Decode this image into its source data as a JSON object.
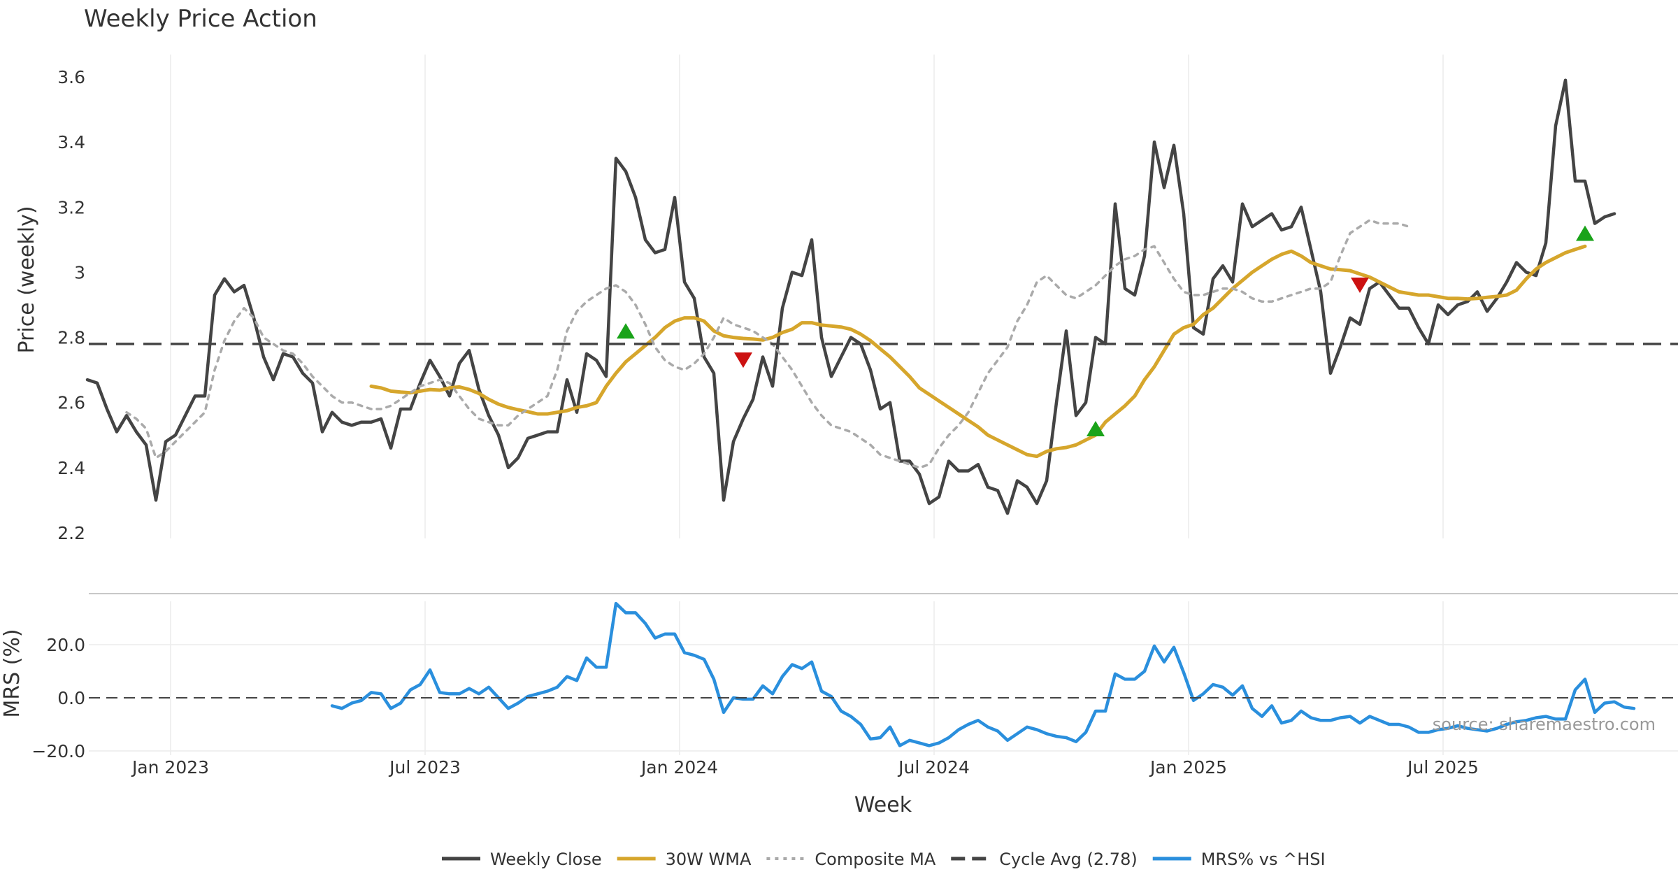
{
  "chart_data": [
    {
      "type": "line",
      "panel": "price",
      "title": "Weekly Price Action",
      "xlabel": "",
      "ylabel": "Price (weekly)",
      "ylim": [
        2.2,
        3.65
      ],
      "yticks": [
        2.2,
        2.4,
        2.6,
        2.8,
        3.0,
        3.2,
        3.4,
        3.6
      ],
      "ytick_labels": [
        "2.2",
        "2.4",
        "2.6",
        "2.8",
        "3",
        "3.2",
        "3.4",
        "3.6"
      ],
      "x_start_week_index": 0,
      "series": [
        {
          "name": "Weekly Close",
          "color": "#444444",
          "style": "solid",
          "start": 0,
          "values": [
            2.67,
            2.66,
            2.58,
            2.51,
            2.56,
            2.51,
            2.47,
            2.3,
            2.48,
            2.5,
            2.56,
            2.62,
            2.62,
            2.93,
            2.98,
            2.94,
            2.96,
            2.86,
            2.74,
            2.67,
            2.75,
            2.74,
            2.69,
            2.66,
            2.51,
            2.57,
            2.54,
            2.53,
            2.54,
            2.54,
            2.55,
            2.46,
            2.58,
            2.58,
            2.66,
            2.73,
            2.68,
            2.62,
            2.72,
            2.76,
            2.64,
            2.56,
            2.5,
            2.4,
            2.43,
            2.49,
            2.5,
            2.51,
            2.51,
            2.67,
            2.57,
            2.75,
            2.73,
            2.68,
            3.35,
            3.31,
            3.23,
            3.1,
            3.06,
            3.07,
            3.23,
            2.97,
            2.92,
            2.74,
            2.69,
            2.3,
            2.48,
            2.55,
            2.61,
            2.74,
            2.65,
            2.89,
            3.0,
            2.99,
            3.1,
            2.8,
            2.68,
            2.74,
            2.8,
            2.78,
            2.7,
            2.58,
            2.6,
            2.42,
            2.42,
            2.38,
            2.29,
            2.31,
            2.42,
            2.39,
            2.39,
            2.41,
            2.34,
            2.33,
            2.26,
            2.36,
            2.34,
            2.29,
            2.36,
            2.6,
            2.82,
            2.56,
            2.6,
            2.8,
            2.78,
            3.21,
            2.95,
            2.93,
            3.05,
            3.4,
            3.26,
            3.39,
            3.18,
            2.83,
            2.81,
            2.98,
            3.02,
            2.97,
            3.21,
            3.14,
            3.16,
            3.18,
            3.13,
            3.14,
            3.2,
            3.07,
            2.94,
            2.69,
            2.77,
            2.86,
            2.84,
            2.95,
            2.97,
            2.93,
            2.89,
            2.89,
            2.83,
            2.78,
            2.9,
            2.87,
            2.9,
            2.91,
            2.94,
            2.88,
            2.92,
            2.97,
            3.03,
            3.0,
            2.99,
            3.09,
            3.45,
            3.59,
            3.28,
            3.28,
            3.15,
            3.17,
            3.18
          ]
        },
        {
          "name": "30W WMA",
          "color": "#d6a62c",
          "style": "solid",
          "start": 29,
          "values": [
            2.65,
            2.645,
            2.635,
            2.632,
            2.63,
            2.635,
            2.64,
            2.638,
            2.645,
            2.648,
            2.64,
            2.628,
            2.61,
            2.595,
            2.585,
            2.578,
            2.572,
            2.565,
            2.565,
            2.57,
            2.575,
            2.585,
            2.59,
            2.6,
            2.65,
            2.69,
            2.725,
            2.75,
            2.775,
            2.8,
            2.83,
            2.85,
            2.86,
            2.86,
            2.85,
            2.82,
            2.805,
            2.8,
            2.797,
            2.795,
            2.792,
            2.8,
            2.815,
            2.825,
            2.845,
            2.845,
            2.838,
            2.835,
            2.832,
            2.825,
            2.81,
            2.79,
            2.765,
            2.74,
            2.71,
            2.68,
            2.645,
            2.625,
            2.605,
            2.585,
            2.565,
            2.545,
            2.525,
            2.5,
            2.485,
            2.47,
            2.455,
            2.44,
            2.435,
            2.45,
            2.458,
            2.462,
            2.47,
            2.485,
            2.5,
            2.54,
            2.565,
            2.59,
            2.62,
            2.67,
            2.71,
            2.76,
            2.81,
            2.83,
            2.84,
            2.87,
            2.89,
            2.92,
            2.95,
            2.975,
            3.0,
            3.02,
            3.04,
            3.055,
            3.065,
            3.05,
            3.03,
            3.02,
            3.01,
            3.008,
            3.005,
            2.995,
            2.985,
            2.97,
            2.955,
            2.94,
            2.935,
            2.93,
            2.93,
            2.925,
            2.92,
            2.92,
            2.918,
            2.92,
            2.923,
            2.926,
            2.93,
            2.945,
            2.98,
            3.01,
            3.03,
            3.045,
            3.06,
            3.07,
            3.08
          ]
        },
        {
          "name": "Composite MA",
          "color": "#aaaaaa",
          "style": "dotted",
          "start": 4,
          "values": [
            2.57,
            2.55,
            2.52,
            2.43,
            2.45,
            2.48,
            2.51,
            2.54,
            2.57,
            2.7,
            2.79,
            2.85,
            2.89,
            2.86,
            2.8,
            2.78,
            2.76,
            2.75,
            2.72,
            2.68,
            2.65,
            2.62,
            2.6,
            2.6,
            2.59,
            2.58,
            2.58,
            2.59,
            2.61,
            2.63,
            2.65,
            2.66,
            2.67,
            2.66,
            2.62,
            2.58,
            2.55,
            2.54,
            2.53,
            2.53,
            2.56,
            2.58,
            2.6,
            2.62,
            2.7,
            2.82,
            2.88,
            2.91,
            2.93,
            2.95,
            2.96,
            2.94,
            2.9,
            2.84,
            2.77,
            2.73,
            2.71,
            2.7,
            2.72,
            2.75,
            2.8,
            2.86,
            2.84,
            2.83,
            2.82,
            2.8,
            2.78,
            2.74,
            2.7,
            2.65,
            2.6,
            2.56,
            2.53,
            2.52,
            2.51,
            2.49,
            2.47,
            2.44,
            2.43,
            2.42,
            2.41,
            2.4,
            2.41,
            2.46,
            2.5,
            2.53,
            2.57,
            2.63,
            2.69,
            2.73,
            2.77,
            2.85,
            2.9,
            2.97,
            2.99,
            2.96,
            2.93,
            2.92,
            2.94,
            2.96,
            2.99,
            3.02,
            3.04,
            3.05,
            3.07,
            3.08,
            3.03,
            2.98,
            2.94,
            2.93,
            2.93,
            2.94,
            2.95,
            2.95,
            2.94,
            2.92,
            2.91,
            2.91,
            2.92,
            2.93,
            2.94,
            2.95,
            2.95,
            2.97,
            3.05,
            3.12,
            3.14,
            3.16,
            3.15,
            3.15,
            3.15,
            3.14
          ]
        },
        {
          "name": "Cycle Avg (2.78)",
          "color": "#444444",
          "style": "dashed",
          "value": 2.78
        }
      ],
      "markers": [
        {
          "type": "buy",
          "week": 55,
          "value": 2.82,
          "color": "#1aa31a"
        },
        {
          "type": "sell",
          "week": 67,
          "value": 2.73,
          "color": "#cc1111"
        },
        {
          "type": "buy",
          "week": 103,
          "value": 2.52,
          "color": "#1aa31a"
        },
        {
          "type": "sell",
          "week": 130,
          "value": 2.96,
          "color": "#cc1111"
        },
        {
          "type": "buy",
          "week": 153,
          "value": 3.12,
          "color": "#1aa31a"
        }
      ]
    },
    {
      "type": "line",
      "panel": "mrs",
      "title": "",
      "xlabel": "Week",
      "ylabel": "MRS (%)",
      "ylim": [
        -20,
        38
      ],
      "yticks": [
        -20,
        0,
        20
      ],
      "ytick_labels": [
        "−20.0",
        "0.0",
        "20.0"
      ],
      "xticks": [
        {
          "label": "Jan 2023",
          "week": 8.5
        },
        {
          "label": "Jul 2023",
          "week": 34.5
        },
        {
          "label": "Jan 2024",
          "week": 60.5
        },
        {
          "label": "Jul 2024",
          "week": 86.5
        },
        {
          "label": "Jan 2025",
          "week": 112.5
        },
        {
          "label": "Jul 2025",
          "week": 138.5
        }
      ],
      "series": [
        {
          "name": "MRS% vs ^HSI",
          "color": "#2a8fdd",
          "style": "solid",
          "start": 25,
          "values": [
            -3,
            -4,
            -2,
            -1,
            2,
            1.5,
            -4,
            -2,
            3,
            5,
            10.5,
            2,
            1.5,
            1.5,
            3.5,
            1.5,
            4,
            0,
            -4,
            -2,
            0.5,
            1.5,
            2.5,
            4,
            8,
            6.5,
            15,
            11.5,
            11.5,
            35.5,
            32,
            32,
            28,
            22.5,
            24,
            24,
            17,
            16,
            14.5,
            7,
            -5.5,
            0,
            -0.5,
            -0.5,
            4.5,
            1.5,
            8,
            12.5,
            11,
            13.5,
            2.5,
            0.5,
            -5,
            -7,
            -10,
            -15.5,
            -15,
            -11,
            -18,
            -16,
            -17,
            -18,
            -17,
            -15,
            -12,
            -10,
            -8.5,
            -11,
            -12.5,
            -16,
            -13.5,
            -11,
            -12,
            -13.5,
            -14.5,
            -15,
            -16.5,
            -13,
            -5,
            -5,
            9,
            7,
            7,
            10,
            19.5,
            13.5,
            19,
            9.5,
            -1,
            1.5,
            5,
            4,
            1,
            4.5,
            -4,
            -7,
            -3,
            -9.5,
            -8.5,
            -5,
            -7.5,
            -8.5,
            -8.5,
            -7.5,
            -7,
            -9.5,
            -7,
            -8.5,
            -10,
            -10,
            -11,
            -13,
            -13,
            -12,
            -11.5,
            -10.5,
            -11.5,
            -12,
            -12.5,
            -11.5,
            -10,
            -9,
            -8.5,
            -7.5,
            -7,
            -8,
            -8,
            3,
            7,
            -5.5,
            -2,
            -1.5,
            -3.5,
            -4
          ]
        },
        {
          "name": "Zero line",
          "color": "#444444",
          "style": "dashed",
          "value": 0
        }
      ],
      "annotation": "source: sharemaestro.com"
    }
  ],
  "legend": [
    {
      "label": "Weekly Close",
      "color": "#444444",
      "style": "solid"
    },
    {
      "label": "30W WMA",
      "color": "#d6a62c",
      "style": "solid"
    },
    {
      "label": "Composite MA",
      "color": "#aaaaaa",
      "style": "dotted"
    },
    {
      "label": "Cycle Avg (2.78)",
      "color": "#444444",
      "style": "dashed"
    },
    {
      "label": "MRS% vs ^HSI",
      "color": "#2a8fdd",
      "style": "solid"
    }
  ]
}
